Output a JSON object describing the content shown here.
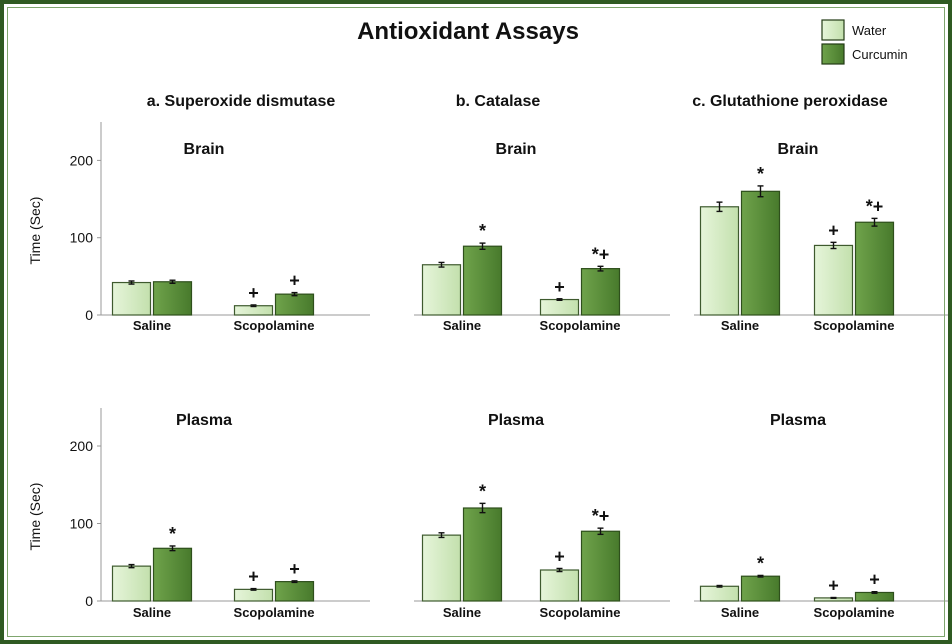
{
  "title": "Antioxidant Assays",
  "legend": {
    "placement": "top-right",
    "items": [
      {
        "name": "Water",
        "color": "#d4ecc4"
      },
      {
        "name": "Curcumin",
        "color": "#5b8f3a"
      }
    ]
  },
  "columns": [
    "a. Superoxide dismutase",
    "b. Catalase",
    "c. Glutathione peroxidase"
  ],
  "ylabels": [
    "Time  (Sec)",
    "Time  (Sec)"
  ],
  "chart_data": [
    {
      "type": "bar",
      "row": "Brain",
      "column": "a. Superoxide dismutase",
      "subtitle": "Brain",
      "categories": [
        "Saline",
        "Scopolamine"
      ],
      "series": [
        {
          "name": "Water",
          "values": [
            42,
            12
          ],
          "errors": [
            2,
            1
          ]
        },
        {
          "name": "Curcumin",
          "values": [
            43,
            27
          ],
          "errors": [
            2,
            2
          ]
        }
      ],
      "annotations": [
        {
          "category": 1,
          "series": 0,
          "text": "+"
        },
        {
          "category": 1,
          "series": 1,
          "text": "+"
        }
      ],
      "ylim": [
        0,
        250
      ],
      "yticks": [
        0,
        100,
        200
      ]
    },
    {
      "type": "bar",
      "row": "Brain",
      "column": "b. Catalase",
      "subtitle": "Brain",
      "categories": [
        "Saline",
        "Scopolamine"
      ],
      "series": [
        {
          "name": "Water",
          "values": [
            65,
            20
          ],
          "errors": [
            3,
            1
          ]
        },
        {
          "name": "Curcumin",
          "values": [
            89,
            60
          ],
          "errors": [
            4,
            3
          ]
        }
      ],
      "annotations": [
        {
          "category": 0,
          "series": 1,
          "text": "*"
        },
        {
          "category": 1,
          "series": 0,
          "text": "+"
        },
        {
          "category": 1,
          "series": 1,
          "text": "*+"
        }
      ],
      "ylim": [
        0,
        250
      ],
      "yticks": [
        0,
        100,
        200
      ]
    },
    {
      "type": "bar",
      "row": "Brain",
      "column": "c. Glutathione peroxidase",
      "subtitle": "Brain",
      "categories": [
        "Saline",
        "Scopolamine"
      ],
      "series": [
        {
          "name": "Water",
          "values": [
            140,
            90
          ],
          "errors": [
            6,
            4
          ]
        },
        {
          "name": "Curcumin",
          "values": [
            160,
            120
          ],
          "errors": [
            7,
            5
          ]
        }
      ],
      "annotations": [
        {
          "category": 0,
          "series": 1,
          "text": "*"
        },
        {
          "category": 1,
          "series": 0,
          "text": "+"
        },
        {
          "category": 1,
          "series": 1,
          "text": "*+"
        }
      ],
      "ylim": [
        0,
        250
      ],
      "yticks": [
        0,
        100,
        200
      ]
    },
    {
      "type": "bar",
      "row": "Plasma",
      "column": "a. Superoxide dismutase",
      "subtitle": "Plasma",
      "categories": [
        "Saline",
        "Scopolamine"
      ],
      "series": [
        {
          "name": "Water",
          "values": [
            45,
            15
          ],
          "errors": [
            2,
            1
          ]
        },
        {
          "name": "Curcumin",
          "values": [
            68,
            25
          ],
          "errors": [
            3,
            1
          ]
        }
      ],
      "annotations": [
        {
          "category": 0,
          "series": 1,
          "text": "*"
        },
        {
          "category": 1,
          "series": 0,
          "text": "+"
        },
        {
          "category": 1,
          "series": 1,
          "text": "+"
        }
      ],
      "ylim": [
        0,
        250
      ],
      "yticks": [
        0,
        100,
        200
      ]
    },
    {
      "type": "bar",
      "row": "Plasma",
      "column": "b. Catalase",
      "subtitle": "Plasma",
      "categories": [
        "Saline",
        "Scopolamine"
      ],
      "series": [
        {
          "name": "Water",
          "values": [
            85,
            40
          ],
          "errors": [
            3,
            2
          ]
        },
        {
          "name": "Curcumin",
          "values": [
            120,
            90
          ],
          "errors": [
            6,
            4
          ]
        }
      ],
      "annotations": [
        {
          "category": 0,
          "series": 1,
          "text": "*"
        },
        {
          "category": 1,
          "series": 0,
          "text": "+"
        },
        {
          "category": 1,
          "series": 1,
          "text": "*+"
        }
      ],
      "ylim": [
        0,
        250
      ],
      "yticks": [
        0,
        100,
        200
      ]
    },
    {
      "type": "bar",
      "row": "Plasma",
      "column": "c. Glutathione peroxidase",
      "subtitle": "Plasma",
      "categories": [
        "Saline",
        "Scopolamine"
      ],
      "series": [
        {
          "name": "Water",
          "values": [
            19,
            4
          ],
          "errors": [
            1,
            0.5
          ]
        },
        {
          "name": "Curcumin",
          "values": [
            32,
            11
          ],
          "errors": [
            1,
            1
          ]
        }
      ],
      "annotations": [
        {
          "category": 0,
          "series": 1,
          "text": "*"
        },
        {
          "category": 1,
          "series": 0,
          "text": "+"
        },
        {
          "category": 1,
          "series": 1,
          "text": "+"
        }
      ],
      "ylim": [
        0,
        250
      ],
      "yticks": [
        0,
        100,
        200
      ]
    }
  ]
}
